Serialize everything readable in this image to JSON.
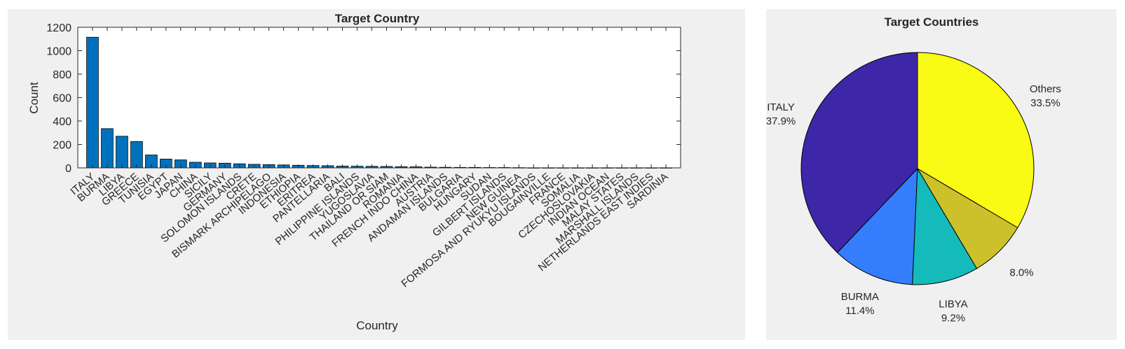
{
  "chart_data": [
    {
      "type": "bar",
      "title": "Target Country",
      "xlabel": "Country",
      "ylabel": "Count",
      "ylim": [
        0,
        1200
      ],
      "yticks": [
        0,
        200,
        400,
        600,
        800,
        1000,
        1200
      ],
      "grid": false,
      "color": "#0072BD",
      "categories": [
        "ITALY",
        "BURMA",
        "LIBYA",
        "GREECE",
        "TUNISIA",
        "EGYPT",
        "JAPAN",
        "CHINA",
        "SICILY",
        "GERMANY",
        "SOLOMON ISLANDS",
        "CRETE",
        "BISMARK ARCHIPELAGO",
        "INDONESIA",
        "ETHIOPIA",
        "ERITREA",
        "PANTELLARIA",
        "BALI",
        "PHILIPPINE ISLANDS",
        "YUGOSLAVIA",
        "THAILAND OR SIAM",
        "ROMANIA",
        "FRENCH INDO CHINA",
        "AUSTRIA",
        "ANDAMAN ISLANDS",
        "BULGARIA",
        "HUNGARY",
        "SUDAN",
        "GILBERT ISLANDS",
        "NEW GUINEA",
        "FORMOSA AND RYUKYU ISLANDS",
        "BOUGAINVILLE",
        "FRANCE",
        "SOMALIA",
        "CZECHOSLOVAKIA",
        "INDIAN OCEAN",
        "MALAY STATES",
        "MARSHALL ISLANDS",
        "NETHERLANDS EAST INDIES",
        "SARDINIA"
      ],
      "values": [
        1115,
        335,
        270,
        225,
        110,
        75,
        68,
        48,
        42,
        40,
        35,
        30,
        28,
        25,
        22,
        20,
        18,
        15,
        14,
        13,
        12,
        10,
        9,
        6,
        5,
        4,
        4,
        3,
        3,
        2,
        1,
        1,
        1,
        1,
        1,
        1,
        1,
        1,
        1,
        1
      ]
    },
    {
      "type": "pie",
      "title": "Target Countries",
      "slices": [
        {
          "label": "ITALY",
          "pct_label": "37.9%",
          "value": 37.9,
          "color": "#3E26A8"
        },
        {
          "label": "BURMA",
          "pct_label": "11.4%",
          "value": 11.4,
          "color": "#347EFE"
        },
        {
          "label": "LIBYA",
          "pct_label": "9.2%",
          "value": 9.2,
          "color": "#15BBBA"
        },
        {
          "label": "",
          "pct_label": "8.0%",
          "value": 8.0,
          "color": "#CCC12A"
        },
        {
          "label": "Others",
          "pct_label": "33.5%",
          "value": 33.5,
          "color": "#F9FB15"
        }
      ]
    }
  ]
}
